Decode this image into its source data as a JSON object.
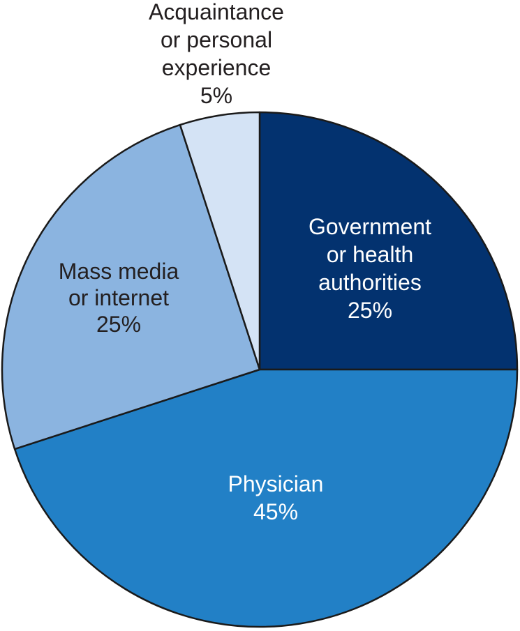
{
  "chart_data": {
    "type": "pie",
    "title": "",
    "start_angle_deg": 0,
    "direction": "clockwise",
    "slices": [
      {
        "name": "Government or health authorities",
        "label_lines": [
          "Government",
          "or health",
          "authorities"
        ],
        "value": 25,
        "value_label": "25%",
        "color": "#03326f",
        "text_color": "#ffffff"
      },
      {
        "name": "Physician",
        "label_lines": [
          "Physician"
        ],
        "value": 45,
        "value_label": "45%",
        "color": "#2280c6",
        "text_color": "#ffffff"
      },
      {
        "name": "Mass media or internet",
        "label_lines": [
          "Mass media",
          "or internet"
        ],
        "value": 25,
        "value_label": "25%",
        "color": "#8bb4e0",
        "text_color": "#231f20"
      },
      {
        "name": "Acquaintance or personal experience",
        "label_lines": [
          "Acquaintance",
          "or personal",
          "experience"
        ],
        "value": 5,
        "value_label": "5%",
        "color": "#d4e3f5",
        "text_color": "#231f20",
        "label_outside": true
      }
    ]
  }
}
